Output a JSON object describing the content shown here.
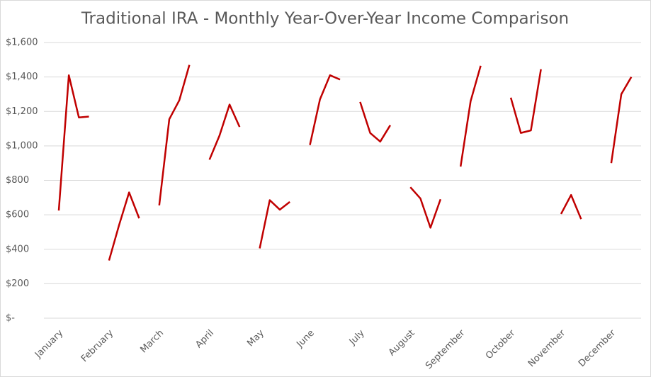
{
  "chart_data": {
    "type": "line",
    "title": "Traditional IRA - Monthly Year-Over-Year Income Comparison",
    "categories": [
      "January",
      null,
      null,
      null,
      null,
      "February",
      null,
      null,
      null,
      null,
      "March",
      null,
      null,
      null,
      null,
      "April",
      null,
      null,
      null,
      null,
      "May",
      null,
      null,
      null,
      null,
      "June",
      null,
      null,
      null,
      null,
      "July",
      null,
      null,
      null,
      null,
      "August",
      null,
      null,
      null,
      null,
      "September",
      null,
      null,
      null,
      null,
      "October",
      null,
      null,
      null,
      null,
      "November",
      null,
      null,
      null,
      null,
      "December",
      null,
      null,
      null,
      null
    ],
    "series": [
      {
        "color": "#c00000",
        "values": [
          625,
          1410,
          1165,
          1170,
          null,
          335,
          540,
          730,
          580,
          null,
          655,
          1155,
          1265,
          1470,
          null,
          920,
          1060,
          1240,
          1110,
          null,
          405,
          685,
          630,
          675,
          null,
          1005,
          1270,
          1410,
          1385,
          null,
          1255,
          1075,
          1025,
          1120,
          null,
          760,
          695,
          525,
          690,
          null,
          880,
          1260,
          1465,
          null,
          null,
          1280,
          1075,
          1090,
          1445,
          null,
          605,
          715,
          575,
          null,
          null,
          900,
          1300,
          1400,
          null,
          null
        ]
      }
    ],
    "ylim": [
      0,
      1600
    ],
    "yticks": [
      {
        "value": 0,
        "label": "$-"
      },
      {
        "value": 200,
        "label": "$200"
      },
      {
        "value": 400,
        "label": "$400"
      },
      {
        "value": 600,
        "label": "$600"
      },
      {
        "value": 800,
        "label": "$800"
      },
      {
        "value": 1000,
        "label": "$1,000"
      },
      {
        "value": 1200,
        "label": "$1,200"
      },
      {
        "value": 1400,
        "label": "$1,400"
      },
      {
        "value": 1600,
        "label": "$1,600"
      }
    ],
    "grid": true
  }
}
